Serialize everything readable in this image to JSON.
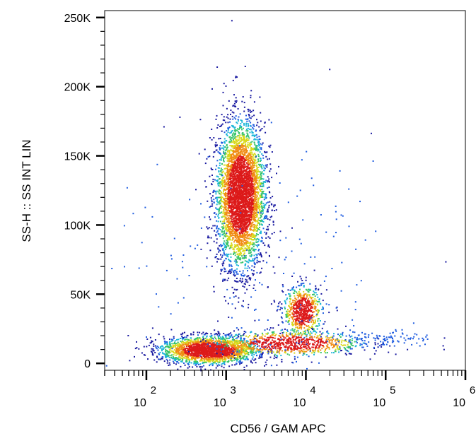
{
  "chart_data": {
    "type": "scatter",
    "style": "flow-cytometry density dot plot",
    "xlabel": "CD56  /  GAM  APC",
    "ylabel": "SS-H :: SS INT LIN",
    "x_scale": "log",
    "xlim": [
      30,
      1000000
    ],
    "ylim": [
      -5000,
      255000
    ],
    "x_ticks": [
      {
        "base": "10",
        "exp": "2",
        "value": 100
      },
      {
        "base": "10",
        "exp": "3",
        "value": 1000
      },
      {
        "base": "10",
        "exp": "4",
        "value": 10000
      },
      {
        "base": "10",
        "exp": "5",
        "value": 100000
      },
      {
        "base": "10",
        "exp": "6",
        "value": 1000000
      }
    ],
    "y_ticks": [
      {
        "label": "0",
        "value": 0
      },
      {
        "label": "50K",
        "value": 50000
      },
      {
        "label": "100K",
        "value": 100000
      },
      {
        "label": "150K",
        "value": 150000
      },
      {
        "label": "200K",
        "value": 200000
      },
      {
        "label": "250K",
        "value": 250000
      }
    ],
    "color_scale": [
      "#1a1aa0",
      "#1f5ce0",
      "#19b5d8",
      "#39c46a",
      "#d9d91a",
      "#f08c14",
      "#dd1a1a"
    ],
    "populations": [
      {
        "x": 1500,
        "y": 122000,
        "sx_dec": 0.15,
        "sy": 26000,
        "n": 4200
      },
      {
        "x": 9000,
        "y": 38000,
        "sx_dec": 0.12,
        "sy": 9000,
        "n": 700
      },
      {
        "x": 600,
        "y": 10000,
        "sx_dec": 0.3,
        "sy": 5000,
        "n": 2200
      },
      {
        "x": 6000,
        "y": 15000,
        "sx_dec": 0.45,
        "sy": 4500,
        "n": 800
      },
      {
        "x": 80000,
        "y": 18000,
        "sx_dec": 0.35,
        "sy": 3500,
        "n": 120
      },
      {
        "x": 3000,
        "y": 50000,
        "sx_dec": 1.0,
        "sy": 60000,
        "n": 250
      }
    ]
  }
}
